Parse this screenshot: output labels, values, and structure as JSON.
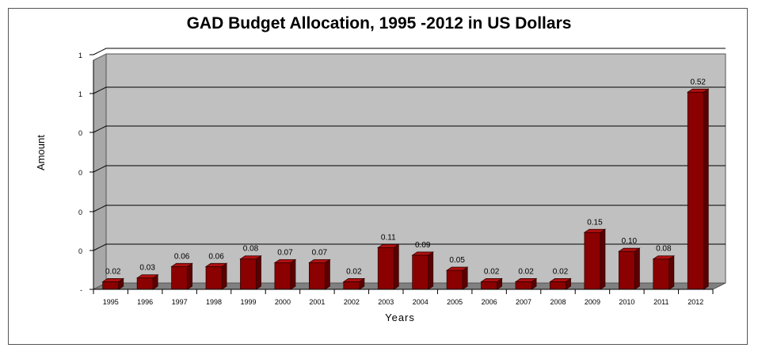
{
  "chart_data": {
    "type": "bar",
    "title": "GAD Budget Allocation, 1995 -2012 in US Dollars",
    "xlabel": "Years",
    "ylabel": "Amount",
    "categories": [
      "1995",
      "1996",
      "1997",
      "1998",
      "1999",
      "2000",
      "2001",
      "2002",
      "2003",
      "2004",
      "2005",
      "2006",
      "2007",
      "2008",
      "2009",
      "2010",
      "2011",
      "2012"
    ],
    "values": [
      0.02,
      0.03,
      0.06,
      0.06,
      0.08,
      0.07,
      0.07,
      0.02,
      0.11,
      0.09,
      0.05,
      0.02,
      0.02,
      0.02,
      0.15,
      0.1,
      0.08,
      0.52
    ],
    "data_labels": [
      "0.02",
      "0.03",
      "0.06",
      "0.06",
      "0.08",
      "0.07",
      "0.07",
      "0.02",
      "0.11",
      "0.09",
      "0.05",
      "0.02",
      "0.02",
      "0.02",
      "0.15",
      "0.10",
      "0.08",
      "0.52"
    ],
    "y_tick_labels": [
      "-",
      "0",
      "0",
      "0",
      "0",
      "1",
      "1"
    ],
    "ylim": [
      0,
      0.6
    ],
    "grid": true,
    "bar_color": "#8b0000",
    "bar_side_color": "#5a0000",
    "bar_top_color": "#b01010",
    "plot_background": "#c0c0c0"
  }
}
